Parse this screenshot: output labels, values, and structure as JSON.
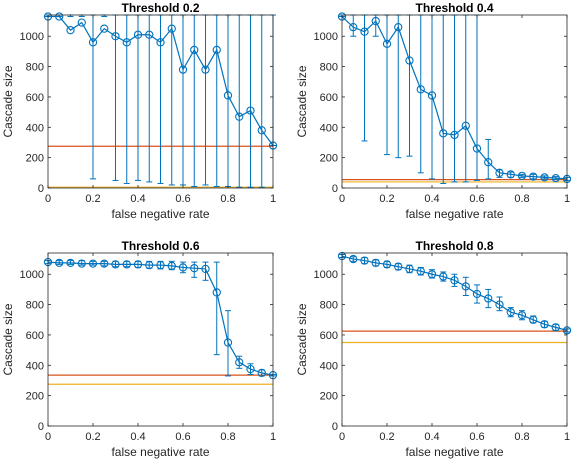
{
  "colors": {
    "main": "#0072BD",
    "ref_red": "#D95319",
    "ref_yellow": "#EDB120",
    "axis": "#262626"
  },
  "chart_data": [
    {
      "type": "line",
      "title": "Threshold 0.2",
      "xlabel": "false negative rate",
      "ylabel": "Cascade size",
      "xlim": [
        0,
        1
      ],
      "ylim": [
        0,
        1140
      ],
      "xticks": [
        0,
        0.2,
        0.4,
        0.6,
        0.8,
        1
      ],
      "xtick_labels": [
        "0",
        "0.2",
        "0.4",
        "0.6",
        "0.8",
        "1"
      ],
      "yticks": [
        0,
        200,
        400,
        600,
        800,
        1000
      ],
      "ytick_labels": [
        "0",
        "200",
        "400",
        "600",
        "800",
        "1000"
      ],
      "grid": false,
      "marker": "circle",
      "x": [
        0,
        0.05,
        0.1,
        0.15,
        0.2,
        0.25,
        0.3,
        0.35,
        0.4,
        0.45,
        0.5,
        0.55,
        0.6,
        0.65,
        0.7,
        0.75,
        0.8,
        0.85,
        0.9,
        0.95,
        1
      ],
      "y": [
        1130,
        1130,
        1040,
        1090,
        960,
        1050,
        1000,
        960,
        1010,
        1010,
        960,
        1050,
        780,
        910,
        780,
        910,
        610,
        470,
        510,
        380,
        280
      ],
      "err_low": [
        1130,
        1130,
        1130,
        1130,
        60,
        1130,
        50,
        30,
        50,
        40,
        30,
        20,
        20,
        10,
        20,
        10,
        10,
        5,
        5,
        5,
        280
      ],
      "err_high": [
        1140,
        1140,
        1140,
        1140,
        1140,
        1140,
        1140,
        1140,
        1140,
        1140,
        1140,
        1140,
        1140,
        1140,
        1140,
        1140,
        1140,
        1140,
        1140,
        1140,
        1140
      ],
      "ref_lines": [
        {
          "y": 275,
          "color": "#D95319"
        },
        {
          "y": 5,
          "color": "#EDB120"
        }
      ]
    },
    {
      "type": "line",
      "title": "Threshold 0.4",
      "xlabel": "false negative rate",
      "ylabel": "Cascade size",
      "xlim": [
        0,
        1
      ],
      "ylim": [
        0,
        1140
      ],
      "xticks": [
        0,
        0.2,
        0.4,
        0.6,
        0.8,
        1
      ],
      "xtick_labels": [
        "0",
        "0.2",
        "0.4",
        "0.6",
        "0.8",
        "1"
      ],
      "yticks": [
        0,
        200,
        400,
        600,
        800,
        1000
      ],
      "ytick_labels": [
        "0",
        "200",
        "400",
        "600",
        "800",
        "1000"
      ],
      "grid": false,
      "marker": "circle",
      "x": [
        0,
        0.05,
        0.1,
        0.15,
        0.2,
        0.25,
        0.3,
        0.35,
        0.4,
        0.45,
        0.5,
        0.55,
        0.6,
        0.65,
        0.7,
        0.75,
        0.8,
        0.85,
        0.9,
        0.95,
        1
      ],
      "y": [
        1130,
        1060,
        1030,
        1100,
        950,
        1060,
        840,
        650,
        610,
        360,
        350,
        410,
        260,
        170,
        100,
        90,
        80,
        75,
        70,
        65,
        60
      ],
      "err_low": [
        1130,
        1000,
        310,
        1000,
        220,
        200,
        210,
        100,
        60,
        30,
        40,
        40,
        50,
        60,
        70,
        70,
        70,
        60,
        60,
        55,
        50
      ],
      "err_high": [
        1140,
        1140,
        1140,
        1140,
        1140,
        1140,
        1140,
        1140,
        1140,
        1140,
        1140,
        1140,
        1140,
        320,
        120,
        105,
        90,
        90,
        80,
        75,
        70
      ],
      "ref_lines": [
        {
          "y": 55,
          "color": "#D95319"
        },
        {
          "y": 40,
          "color": "#EDB120"
        }
      ]
    },
    {
      "type": "line",
      "title": "Threshold 0.6",
      "xlabel": "false negative rate",
      "ylabel": "Cascade size",
      "xlim": [
        0,
        1
      ],
      "ylim": [
        0,
        1140
      ],
      "xticks": [
        0,
        0.2,
        0.4,
        0.6,
        0.8,
        1
      ],
      "xtick_labels": [
        "0",
        "0.2",
        "0.4",
        "0.6",
        "0.8",
        "1"
      ],
      "yticks": [
        0,
        200,
        400,
        600,
        800,
        1000
      ],
      "ytick_labels": [
        "0",
        "200",
        "400",
        "600",
        "800",
        "1000"
      ],
      "grid": false,
      "marker": "circle",
      "x": [
        0,
        0.05,
        0.1,
        0.15,
        0.2,
        0.25,
        0.3,
        0.35,
        0.4,
        0.45,
        0.5,
        0.55,
        0.6,
        0.65,
        0.7,
        0.75,
        0.8,
        0.85,
        0.9,
        0.95,
        1
      ],
      "y": [
        1080,
        1075,
        1075,
        1070,
        1070,
        1070,
        1065,
        1065,
        1065,
        1060,
        1060,
        1055,
        1045,
        1040,
        1035,
        880,
        550,
        420,
        375,
        350,
        335
      ],
      "err_low": [
        1070,
        1065,
        1065,
        1060,
        1060,
        1055,
        1050,
        1050,
        1045,
        1040,
        1035,
        1030,
        1010,
        980,
        960,
        470,
        330,
        380,
        340,
        330,
        330
      ],
      "err_high": [
        1090,
        1090,
        1090,
        1090,
        1085,
        1085,
        1085,
        1085,
        1085,
        1085,
        1085,
        1085,
        1080,
        1080,
        1080,
        1080,
        760,
        460,
        410,
        370,
        340
      ],
      "ref_lines": [
        {
          "y": 335,
          "color": "#D95319"
        },
        {
          "y": 275,
          "color": "#EDB120"
        }
      ]
    },
    {
      "type": "line",
      "title": "Threshold 0.8",
      "xlabel": "false negative rate",
      "ylabel": "Cascade size",
      "xlim": [
        0,
        1
      ],
      "ylim": [
        0,
        1140
      ],
      "xticks": [
        0,
        0.2,
        0.4,
        0.6,
        0.8,
        1
      ],
      "xtick_labels": [
        "0",
        "0.2",
        "0.4",
        "0.6",
        "0.8",
        "1"
      ],
      "yticks": [
        0,
        200,
        400,
        600,
        800,
        1000
      ],
      "ytick_labels": [
        "0",
        "200",
        "400",
        "600",
        "800",
        "1000"
      ],
      "grid": false,
      "marker": "circle",
      "x": [
        0,
        0.05,
        0.1,
        0.15,
        0.2,
        0.25,
        0.3,
        0.35,
        0.4,
        0.45,
        0.5,
        0.55,
        0.6,
        0.65,
        0.7,
        0.75,
        0.8,
        0.85,
        0.9,
        0.95,
        1
      ],
      "y": [
        1120,
        1100,
        1090,
        1075,
        1065,
        1050,
        1035,
        1020,
        1000,
        985,
        960,
        920,
        870,
        840,
        800,
        750,
        730,
        700,
        670,
        650,
        630
      ],
      "err_low": [
        1110,
        1085,
        1070,
        1055,
        1045,
        1030,
        1010,
        995,
        975,
        955,
        920,
        860,
        810,
        780,
        760,
        720,
        700,
        680,
        650,
        630,
        620
      ],
      "err_high": [
        1130,
        1115,
        1110,
        1095,
        1085,
        1070,
        1060,
        1045,
        1030,
        1015,
        1000,
        980,
        930,
        900,
        850,
        780,
        760,
        725,
        690,
        670,
        640
      ],
      "ref_lines": [
        {
          "y": 625,
          "color": "#D95319"
        },
        {
          "y": 550,
          "color": "#EDB120"
        }
      ]
    }
  ]
}
